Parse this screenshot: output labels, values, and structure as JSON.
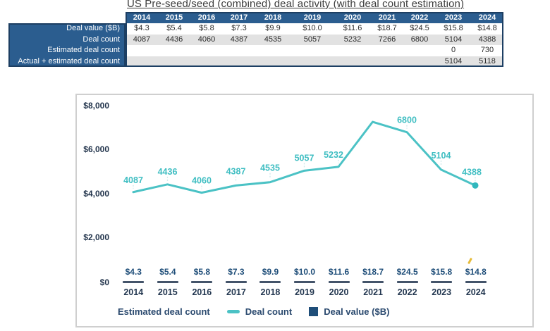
{
  "table": {
    "title": "US Pre-seed/seed (combined) deal activity (with deal count estimation)",
    "years": [
      "2014",
      "2015",
      "2016",
      "2017",
      "2018",
      "2019",
      "2020",
      "2021",
      "2022",
      "2023",
      "2024"
    ],
    "rows": [
      {
        "label": "Deal value ($B)",
        "values": [
          "$4.3",
          "$5.4",
          "$5.8",
          "$7.3",
          "$9.9",
          "$10.0",
          "$11.6",
          "$18.7",
          "$24.5",
          "$15.8",
          "$14.8"
        ]
      },
      {
        "label": "Deal count",
        "values": [
          "4087",
          "4436",
          "4060",
          "4387",
          "4535",
          "5057",
          "5232",
          "7266",
          "6800",
          "5104",
          "4388"
        ]
      },
      {
        "label": "Estimated deal count",
        "values": [
          "",
          "",
          "",
          "",
          "",
          "",
          "",
          "",
          "",
          "0",
          "730"
        ]
      },
      {
        "label": "Actual + estimated deal count",
        "values": [
          "",
          "",
          "",
          "",
          "",
          "",
          "",
          "",
          "",
          "5104",
          "5118"
        ]
      }
    ]
  },
  "chart_data": {
    "type": "line",
    "title": "",
    "x": [
      "2014",
      "2015",
      "2016",
      "2017",
      "2018",
      "2019",
      "2020",
      "2021",
      "2022",
      "2023",
      "2024"
    ],
    "yticks": [
      "$8,000",
      "$6,000",
      "$4,000",
      "$2,000",
      "$0"
    ],
    "ylim": [
      0,
      8000
    ],
    "grid": false,
    "legend_position": "bottom",
    "series": [
      {
        "name": "Deal count",
        "type": "line",
        "color": "#4bc2c5",
        "values": [
          4087,
          4436,
          4060,
          4387,
          4535,
          5057,
          5232,
          7266,
          6800,
          5104,
          4388
        ],
        "point_labels": [
          "4087",
          "4436",
          "4060",
          "4387",
          "4535",
          "5057",
          "5232",
          "",
          "6800",
          "5104",
          "4388"
        ]
      },
      {
        "name": "Deal value ($B)",
        "type": "bar",
        "color": "#44546a",
        "values": [
          4.3,
          5.4,
          5.8,
          7.3,
          9.9,
          10.0,
          11.6,
          18.7,
          24.5,
          15.8,
          14.8
        ],
        "point_labels": [
          "$4.3",
          "$5.4",
          "$5.8",
          "$7.3",
          "$9.9",
          "$10.0",
          "$11.6",
          "$18.7",
          "$24.5",
          "$15.8",
          "$14.8"
        ]
      },
      {
        "name": "Estimated deal count",
        "type": "line",
        "color": null,
        "values": []
      }
    ],
    "legend": [
      "Estimated deal count",
      "Deal count",
      "Deal value ($B)"
    ]
  },
  "colors": {
    "table_blue": "#2b5d8f",
    "stripe_gray": "#e2e2e2",
    "teal": "#4bc2c5",
    "navy": "#1f4e79",
    "bar_dash": "#44546a",
    "border_gray": "#cfcfcf",
    "annotation_yellow": "#e6bc3b"
  }
}
